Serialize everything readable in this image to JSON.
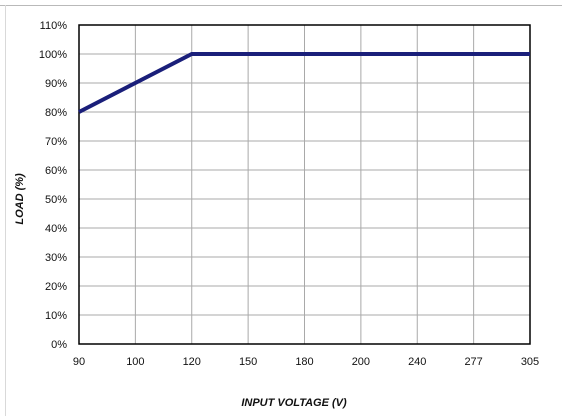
{
  "chart_data": {
    "type": "line",
    "title": "",
    "xlabel": "INPUT VOLTAGE (V)",
    "ylabel": "LOAD (%)",
    "x_categories": [
      "90",
      "100",
      "120",
      "150",
      "180",
      "200",
      "240",
      "277",
      "305"
    ],
    "y_ticks": [
      "0%",
      "10%",
      "20%",
      "30%",
      "40%",
      "50%",
      "60%",
      "70%",
      "80%",
      "90%",
      "100%",
      "110%"
    ],
    "ylim": [
      0,
      110
    ],
    "grid": true,
    "legend": "none",
    "series": [
      {
        "x": [
          "90",
          "120",
          "305"
        ],
        "values": [
          80,
          100,
          100
        ],
        "color": "#1a1f7a"
      }
    ]
  }
}
